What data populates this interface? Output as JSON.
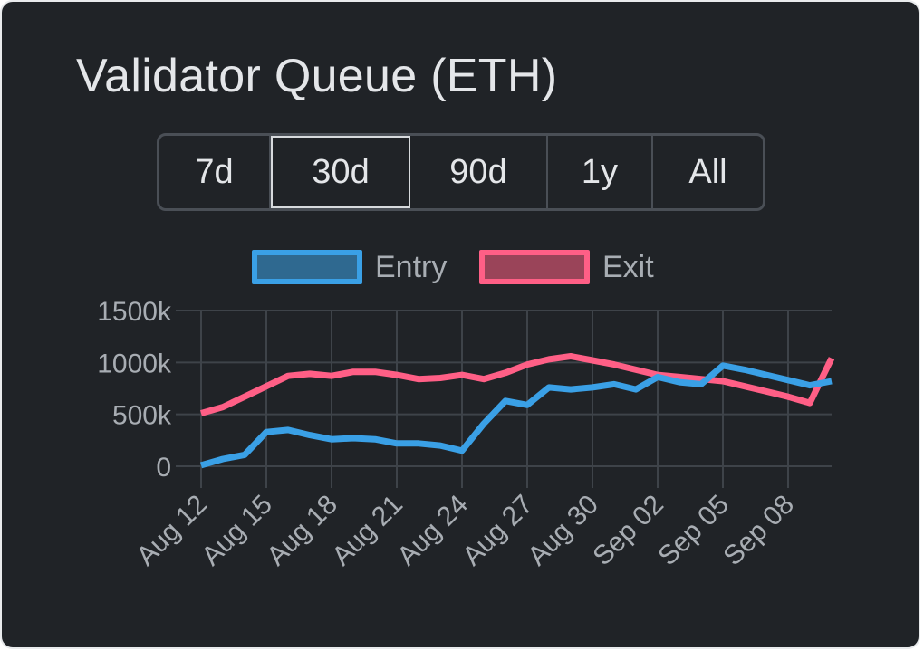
{
  "card": {
    "title": "Validator Queue (ETH)"
  },
  "range_selector": {
    "options": [
      "7d",
      "30d",
      "90d",
      "1y",
      "All"
    ],
    "selected": "30d"
  },
  "colors": {
    "background": "#202327",
    "grid": "#3e4349",
    "tick_text": "#a8adb3",
    "entry_line": "#3aa0e6",
    "entry_fill": "#2f6990",
    "exit_line": "#ff5f86",
    "exit_fill": "#9a4459"
  },
  "chart_data": {
    "type": "line",
    "title": "Validator Queue (ETH)",
    "xlabel": "",
    "ylabel": "",
    "legend": "top",
    "grid": true,
    "ylim": [
      0,
      1500000
    ],
    "y_ticks": [
      0,
      500000,
      1000000,
      1500000
    ],
    "y_tick_labels": [
      "0",
      "500k",
      "1000k",
      "1500k"
    ],
    "x": [
      "Aug 12",
      "Aug 13",
      "Aug 14",
      "Aug 15",
      "Aug 16",
      "Aug 17",
      "Aug 18",
      "Aug 19",
      "Aug 20",
      "Aug 21",
      "Aug 22",
      "Aug 23",
      "Aug 24",
      "Aug 25",
      "Aug 26",
      "Aug 27",
      "Aug 28",
      "Aug 29",
      "Aug 30",
      "Aug 31",
      "Sep 01",
      "Sep 02",
      "Sep 03",
      "Sep 04",
      "Sep 05",
      "Sep 06",
      "Sep 07",
      "Sep 08",
      "Sep 09",
      "Sep 10"
    ],
    "x_tick_labels": [
      "Aug 12",
      "Aug 15",
      "Aug 18",
      "Aug 21",
      "Aug 24",
      "Aug 27",
      "Aug 30",
      "Sep 02",
      "Sep 05",
      "Sep 08"
    ],
    "series": [
      {
        "name": "Entry",
        "values": [
          10000,
          70000,
          110000,
          330000,
          350000,
          300000,
          260000,
          270000,
          260000,
          220000,
          220000,
          200000,
          150000,
          410000,
          630000,
          590000,
          760000,
          740000,
          760000,
          790000,
          740000,
          860000,
          810000,
          790000,
          970000,
          930000,
          880000,
          830000,
          780000,
          820000
        ]
      },
      {
        "name": "Exit",
        "values": [
          510000,
          570000,
          670000,
          770000,
          870000,
          890000,
          870000,
          910000,
          910000,
          880000,
          840000,
          850000,
          880000,
          840000,
          900000,
          980000,
          1030000,
          1060000,
          1020000,
          980000,
          930000,
          880000,
          860000,
          840000,
          820000,
          770000,
          720000,
          670000,
          610000,
          1040000
        ]
      }
    ]
  }
}
